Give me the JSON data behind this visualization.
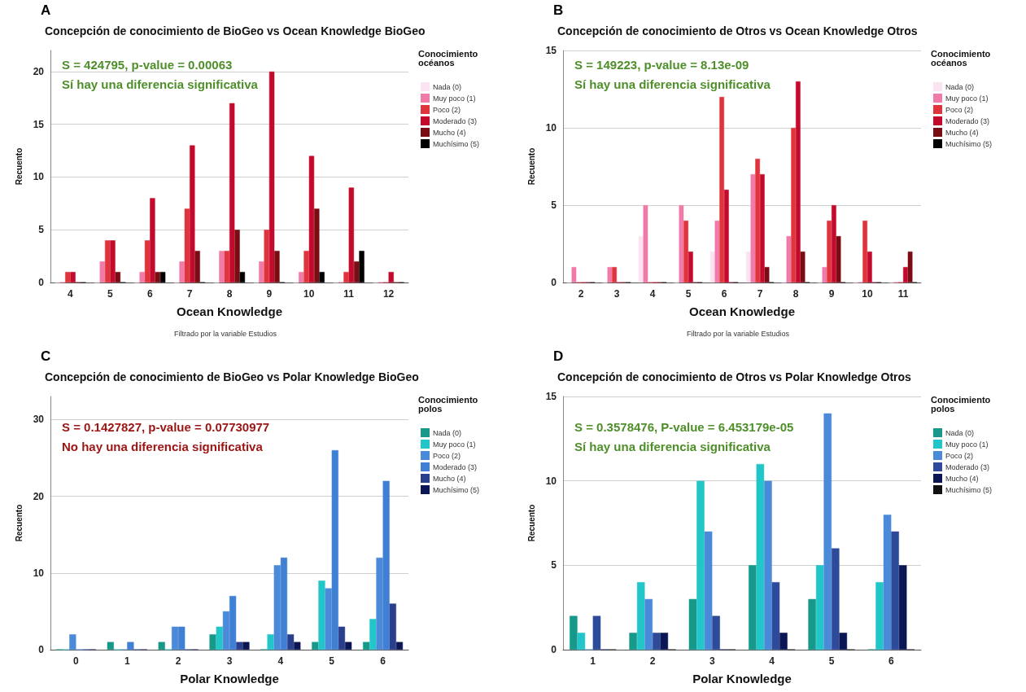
{
  "chart_data": [
    {
      "type": "bar",
      "title": "Concepción de conocimiento de BioGeo vs Ocean Knowledge BioGeo",
      "xlabel": "Ocean Knowledge",
      "ylabel": "Recuento",
      "legend_title": "Conocimiento océanos",
      "annotations": [
        "A",
        "S = 424795, p-value = 0.00063",
        "Sí hay una diferencia significativa",
        "Filtrado por la variable Estudios"
      ],
      "categories": [
        "4",
        "5",
        "6",
        "7",
        "8",
        "9",
        "10",
        "11",
        "12"
      ],
      "ylim": [
        0,
        22
      ],
      "yticks": [
        0,
        5,
        10,
        15,
        20
      ],
      "grid": "y",
      "legend": "right",
      "series": [
        {
          "name": "Nada (0)",
          "color": "#fbe3f1",
          "values": [
            0,
            0,
            0,
            0,
            0,
            0,
            0,
            0,
            0
          ]
        },
        {
          "name": "Muy poco (1)",
          "color": "#f07aa8",
          "values": [
            0,
            2,
            1,
            2,
            3,
            2,
            1,
            0,
            0
          ]
        },
        {
          "name": "Poco (2)",
          "color": "#e0343c",
          "values": [
            1,
            4,
            4,
            7,
            3,
            5,
            3,
            1,
            0
          ]
        },
        {
          "name": "Moderado (3)",
          "color": "#c40a2c",
          "values": [
            1,
            4,
            8,
            13,
            17,
            20,
            12,
            9,
            1
          ]
        },
        {
          "name": "Mucho (4)",
          "color": "#7a0c14",
          "values": [
            0,
            1,
            1,
            3,
            5,
            3,
            7,
            2,
            0
          ]
        },
        {
          "name": "Muchísimo (5)",
          "color": "#000000",
          "values": [
            0,
            0,
            1,
            0,
            1,
            0,
            1,
            3,
            0
          ]
        }
      ]
    },
    {
      "type": "bar",
      "title": "Concepción de conocimiento de Otros vs Ocean Knowledge Otros",
      "xlabel": "Ocean Knowledge",
      "ylabel": "Recuento",
      "legend_title": "Conocimiento océanos",
      "annotations": [
        "B",
        "S = 149223, p-value = 8.13e-09",
        "Sí hay una diferencia significativa",
        "Filtrado por la variable Estudios"
      ],
      "categories": [
        "2",
        "3",
        "4",
        "5",
        "6",
        "7",
        "8",
        "9",
        "10",
        "11"
      ],
      "ylim": [
        0,
        15
      ],
      "yticks": [
        0,
        5,
        10,
        15
      ],
      "grid": "y",
      "legend": "right",
      "series": [
        {
          "name": "Nada (0)",
          "color": "#fbe3f1",
          "values": [
            0,
            0,
            3,
            0,
            2,
            2,
            0,
            0,
            0,
            0
          ]
        },
        {
          "name": "Muy poco (1)",
          "color": "#f07aa8",
          "values": [
            1,
            1,
            5,
            5,
            4,
            7,
            3,
            1,
            0,
            0
          ]
        },
        {
          "name": "Poco (2)",
          "color": "#e0343c",
          "values": [
            0,
            1,
            0,
            4,
            12,
            8,
            10,
            4,
            4,
            0
          ]
        },
        {
          "name": "Moderado (3)",
          "color": "#c40a2c",
          "values": [
            0,
            0,
            0,
            2,
            6,
            7,
            13,
            5,
            2,
            1
          ]
        },
        {
          "name": "Mucho (4)",
          "color": "#7a0c14",
          "values": [
            0,
            0,
            0,
            0,
            0,
            1,
            2,
            3,
            0,
            2
          ]
        },
        {
          "name": "Muchísimo (5)",
          "color": "#000000",
          "values": [
            0,
            0,
            0,
            0,
            0,
            0,
            0,
            0,
            0,
            0
          ]
        }
      ]
    },
    {
      "type": "bar",
      "title": "Concepción de conocimiento de BioGeo vs Polar Knowledge BioGeo",
      "xlabel": "Polar Knowledge",
      "ylabel": "Recuento",
      "legend_title": "Conocimiento polos",
      "annotations": [
        "C",
        "S = 0.1427827, p-value = 0.07730977",
        "No hay una diferencia significativa"
      ],
      "categories": [
        "0",
        "1",
        "2",
        "3",
        "4",
        "5",
        "6"
      ],
      "ylim": [
        0,
        33
      ],
      "yticks": [
        0,
        10,
        20,
        30
      ],
      "grid": "y",
      "legend": "right",
      "series": [
        {
          "name": "Nada (0)",
          "color": "#16998a",
          "values": [
            0,
            1,
            1,
            2,
            0,
            1,
            1
          ]
        },
        {
          "name": "Muy poco (1)",
          "color": "#22c6c8",
          "values": [
            0,
            0,
            0,
            3,
            2,
            9,
            4
          ]
        },
        {
          "name": "Poco (2)",
          "color": "#4a8ad8",
          "values": [
            2,
            0,
            3,
            5,
            11,
            8,
            12
          ]
        },
        {
          "name": "Moderado (3)",
          "color": "#3f7fd4",
          "values": [
            0,
            1,
            3,
            7,
            12,
            26,
            22
          ]
        },
        {
          "name": "Mucho (4)",
          "color": "#2a3f8c",
          "values": [
            0,
            0,
            0,
            1,
            2,
            3,
            6
          ]
        },
        {
          "name": "Muchísimo (5)",
          "color": "#0b1655",
          "values": [
            0,
            0,
            0,
            1,
            1,
            1,
            1
          ]
        }
      ]
    },
    {
      "type": "bar",
      "title": "Concepción de conocimiento de Otros vs Polar Knowledge Otros",
      "xlabel": "Polar Knowledge",
      "ylabel": "Recuento",
      "legend_title": "Conocimiento polos",
      "annotations": [
        "D",
        "S = 0.3578476, P-value = 6.453179e-05",
        "Sí hay una diferencia significativa"
      ],
      "categories": [
        "1",
        "2",
        "3",
        "4",
        "5",
        "6"
      ],
      "ylim": [
        0,
        15
      ],
      "yticks": [
        0,
        5,
        10,
        15
      ],
      "grid": "y",
      "legend": "right",
      "series": [
        {
          "name": "Nada (0)",
          "color": "#16998a",
          "values": [
            2,
            1,
            3,
            5,
            3,
            0
          ]
        },
        {
          "name": "Muy poco (1)",
          "color": "#22c6c8",
          "values": [
            1,
            4,
            10,
            11,
            5,
            4
          ]
        },
        {
          "name": "Poco (2)",
          "color": "#4a8ad8",
          "values": [
            0,
            3,
            7,
            10,
            14,
            8
          ]
        },
        {
          "name": "Moderado (3)",
          "color": "#2e4a9a",
          "values": [
            2,
            1,
            2,
            4,
            6,
            7
          ]
        },
        {
          "name": "Mucho (4)",
          "color": "#0b1655",
          "values": [
            0,
            1,
            0,
            1,
            1,
            5
          ]
        },
        {
          "name": "Muchísimo (5)",
          "color": "#111111",
          "values": [
            0,
            0,
            0,
            0,
            0,
            0
          ]
        }
      ]
    }
  ]
}
